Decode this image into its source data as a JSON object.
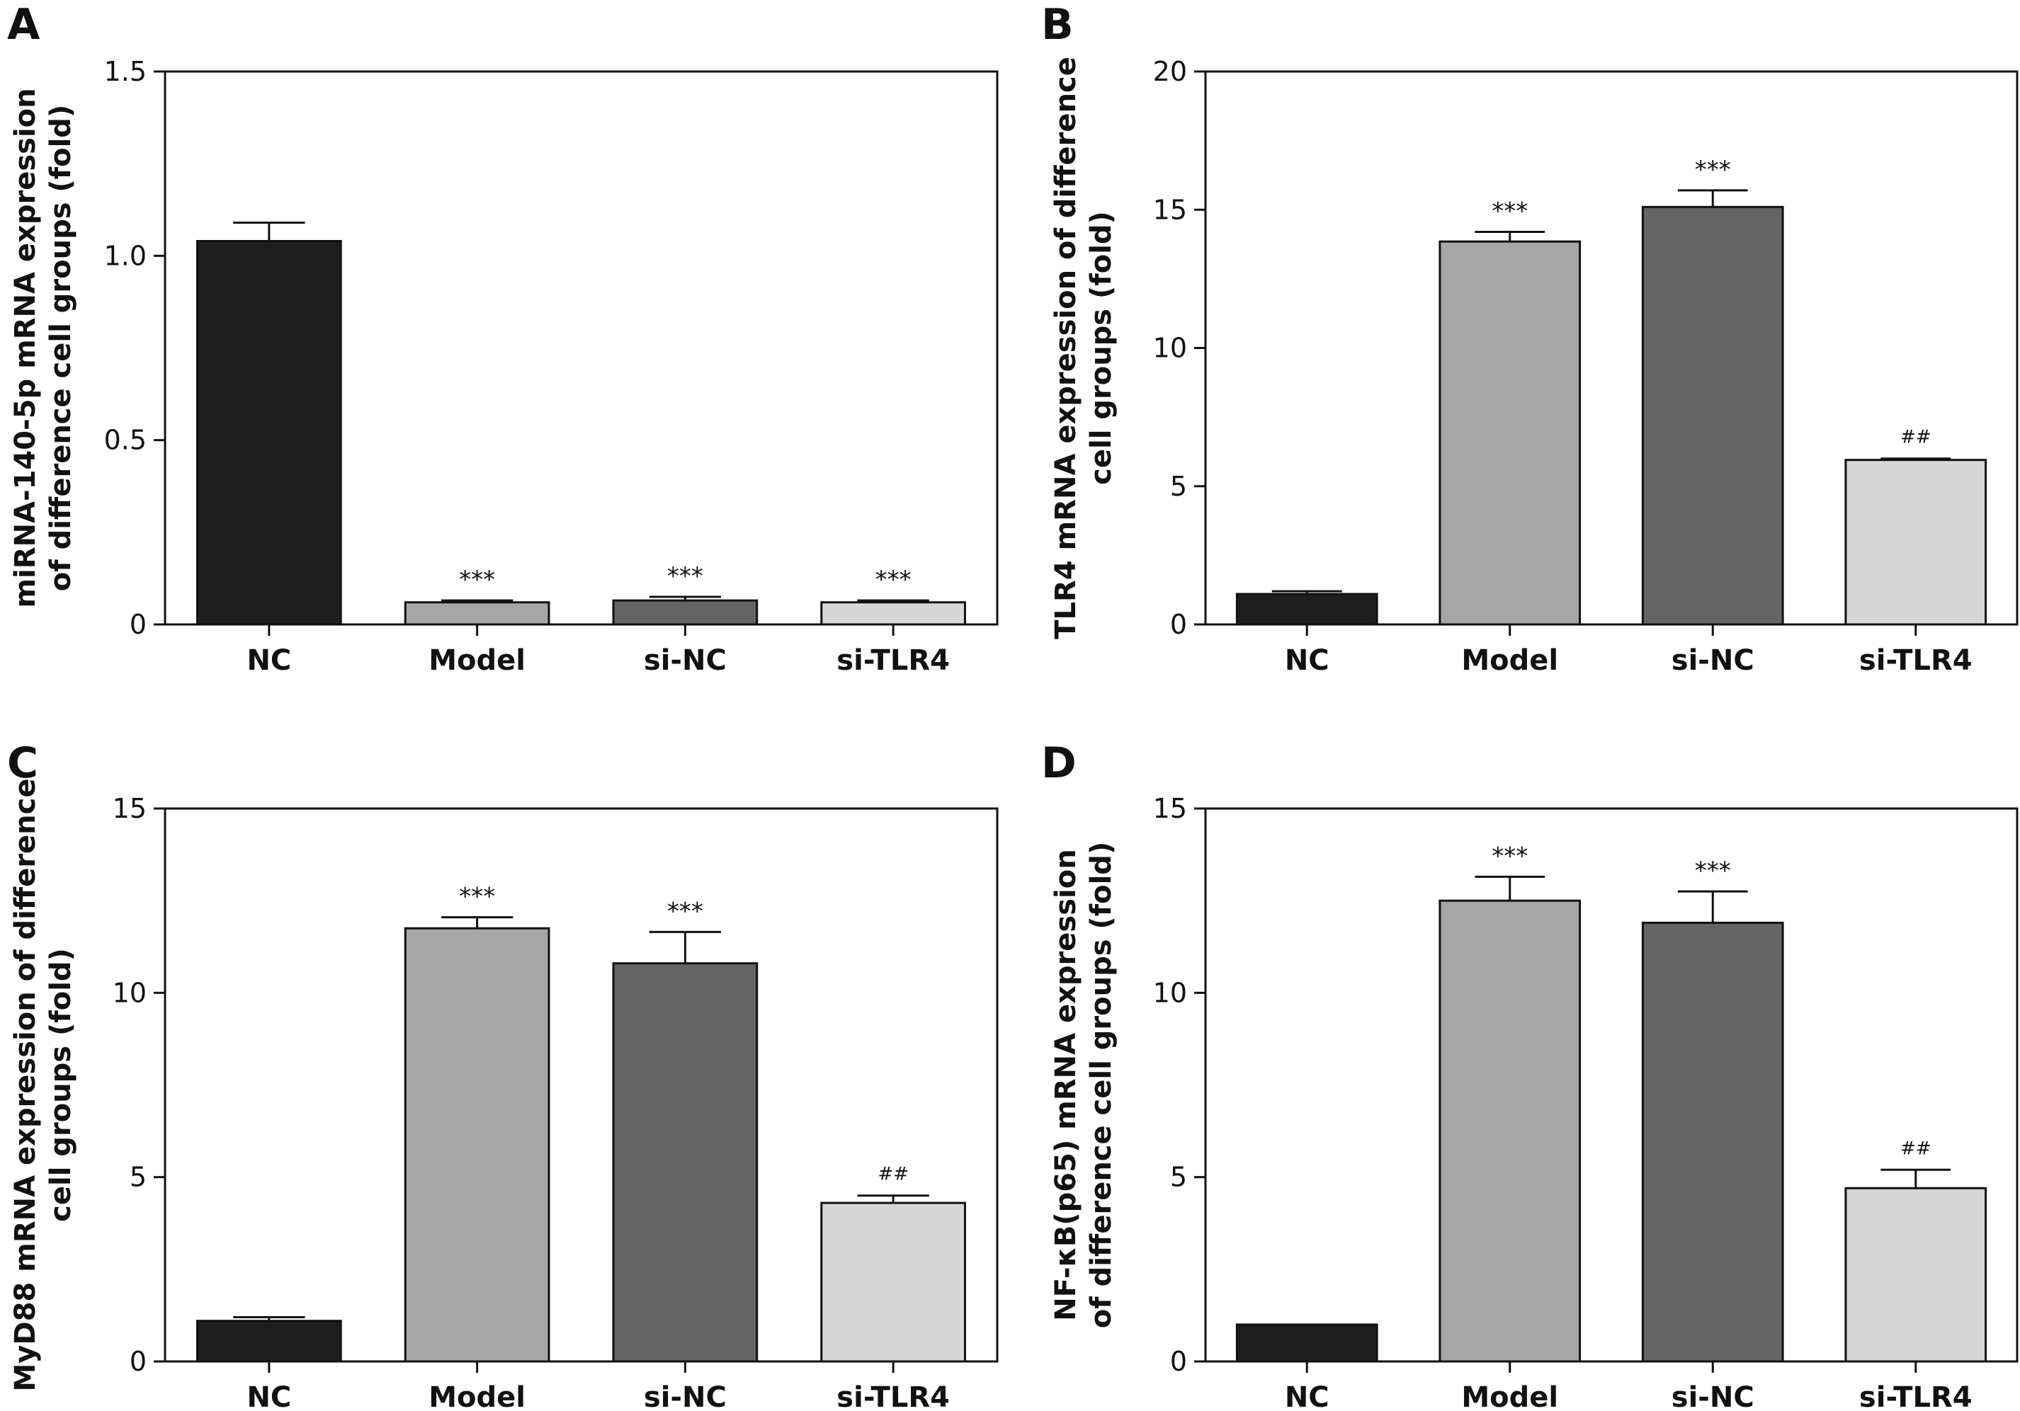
{
  "chart_data": [
    {
      "panel": "A",
      "type": "bar",
      "ylabel": [
        "miRNA-140-5p mRNA expression",
        "of difference cell groups (fold)"
      ],
      "ylim": [
        0,
        1.5
      ],
      "yticks": [
        "0",
        "0.5",
        "1.0",
        "1.5"
      ],
      "ytick_values": [
        0,
        0.5,
        1.0,
        1.5
      ],
      "categories": [
        "NC",
        "Model",
        "si-NC",
        "si-TLR4"
      ],
      "values": [
        1.04,
        0.06,
        0.065,
        0.06
      ],
      "errors": [
        0.05,
        0.005,
        0.01,
        0.005
      ],
      "annotations": [
        "",
        "***",
        "***",
        "***"
      ],
      "colors": [
        "#1e1e1e",
        "#a6a6a6",
        "#646464",
        "#d6d6d6"
      ]
    },
    {
      "panel": "B",
      "type": "bar",
      "ylabel": [
        "TLR4 mRNA expression of difference",
        "cell groups (fold)"
      ],
      "ylim": [
        0,
        20
      ],
      "yticks": [
        "0",
        "5",
        "10",
        "15",
        "20"
      ],
      "ytick_values": [
        0,
        5,
        10,
        15,
        20
      ],
      "categories": [
        "NC",
        "Model",
        "si-NC",
        "si-TLR4"
      ],
      "values": [
        1.1,
        13.85,
        15.1,
        5.95
      ],
      "errors": [
        0.1,
        0.35,
        0.6,
        0.05
      ],
      "annotations": [
        "",
        "***",
        "***",
        "##"
      ],
      "colors": [
        "#1e1e1e",
        "#a6a6a6",
        "#646464",
        "#d6d6d6"
      ]
    },
    {
      "panel": "C",
      "type": "bar",
      "ylabel": [
        "MyD88 mRNA expression of difference",
        "cell groups (fold)"
      ],
      "ylim": [
        0,
        15
      ],
      "yticks": [
        "0",
        "5",
        "10",
        "15"
      ],
      "ytick_values": [
        0,
        5,
        10,
        15
      ],
      "categories": [
        "NC",
        "Model",
        "si-NC",
        "si-TLR4"
      ],
      "values": [
        1.1,
        11.75,
        10.8,
        4.3
      ],
      "errors": [
        0.1,
        0.3,
        0.85,
        0.2
      ],
      "annotations": [
        "",
        "***",
        "***",
        "##"
      ],
      "colors": [
        "#1e1e1e",
        "#a6a6a6",
        "#646464",
        "#d6d6d6"
      ]
    },
    {
      "panel": "D",
      "type": "bar",
      "ylabel": [
        "NF-κB(p65) mRNA expression",
        "of difference cell groups (fold)"
      ],
      "ylim": [
        0,
        15
      ],
      "yticks": [
        "0",
        "5",
        "10",
        "15"
      ],
      "ytick_values": [
        0,
        5,
        10,
        15
      ],
      "categories": [
        "NC",
        "Model",
        "si-NC",
        "si-TLR4"
      ],
      "values": [
        1.0,
        12.5,
        11.9,
        4.7
      ],
      "errors": [
        0.0,
        0.65,
        0.85,
        0.5
      ],
      "annotations": [
        "",
        "***",
        "***",
        "##"
      ],
      "colors": [
        "#1e1e1e",
        "#a6a6a6",
        "#646464",
        "#d6d6d6"
      ]
    }
  ]
}
